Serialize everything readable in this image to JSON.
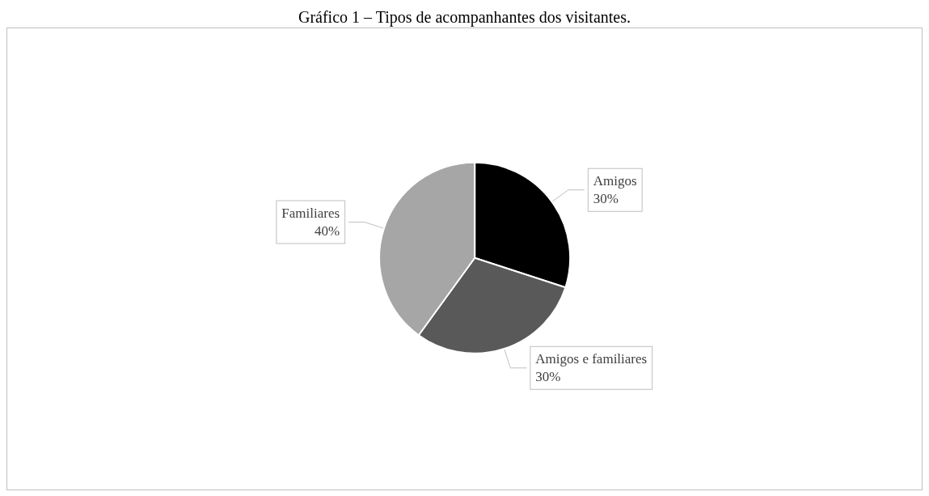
{
  "chart_data": {
    "type": "pie",
    "title": "Gráfico 1 – Tipos de acompanhantes dos visitantes.",
    "categories": [
      "Amigos",
      "Amigos e familiares",
      "Familiares"
    ],
    "values": [
      30,
      30,
      40
    ],
    "colors": [
      "#000000",
      "#595959",
      "#a6a6a6"
    ],
    "value_labels": [
      "30%",
      "30%",
      "40%"
    ],
    "legend": false
  }
}
